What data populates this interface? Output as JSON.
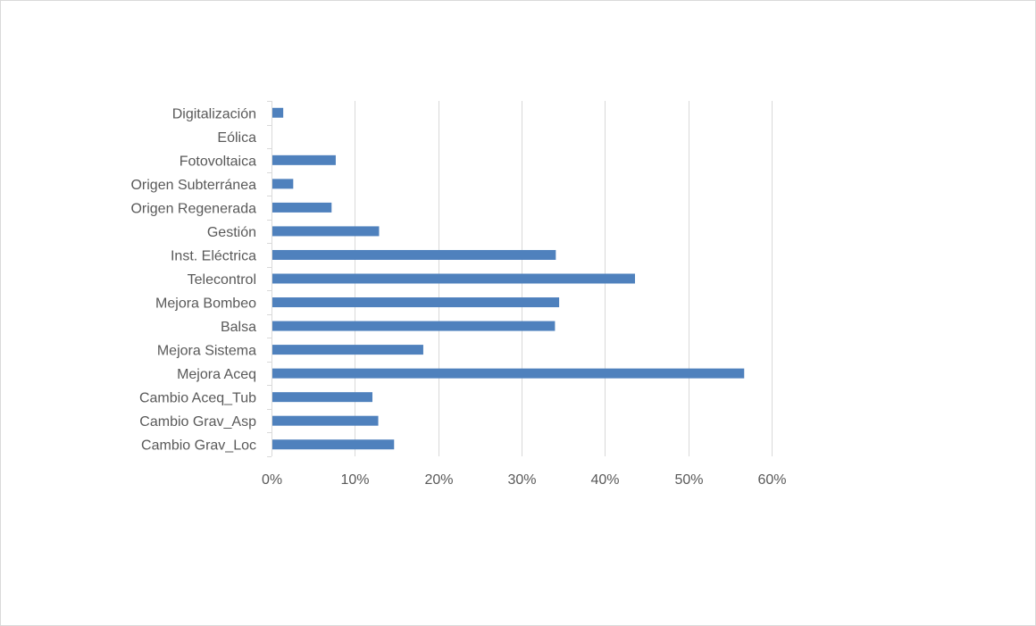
{
  "chart_data": {
    "type": "bar",
    "orientation": "horizontal",
    "title": "",
    "xlabel": "",
    "ylabel": "",
    "xlim": [
      0,
      0.6
    ],
    "grid": true,
    "legend": "none",
    "colors": {
      "bar": "#4f81bd",
      "grid": "#d9d9d9",
      "text": "#595959"
    },
    "categories": [
      "Digitalización",
      "Eólica",
      "Fotovoltaica",
      "Origen Subterránea",
      "Origen Regenerada",
      "Gestión",
      "Inst. Eléctrica",
      "Telecontrol",
      "Mejora Bombeo",
      "Balsa",
      "Mejora Sistema",
      "Mejora Aceq",
      "Cambio Aceq_Tub",
      "Cambio Grav_Asp",
      "Cambio Grav_Loc"
    ],
    "values": [
      0.013,
      0.0,
      0.076,
      0.025,
      0.071,
      0.128,
      0.34,
      0.435,
      0.344,
      0.339,
      0.181,
      0.566,
      0.12,
      0.127,
      0.146
    ],
    "ticks": [
      {
        "value": 0.0,
        "label": "0%"
      },
      {
        "value": 0.1,
        "label": "10%"
      },
      {
        "value": 0.2,
        "label": "20%"
      },
      {
        "value": 0.3,
        "label": "30%"
      },
      {
        "value": 0.4,
        "label": "40%"
      },
      {
        "value": 0.5,
        "label": "50%"
      },
      {
        "value": 0.6,
        "label": "60%"
      }
    ]
  }
}
